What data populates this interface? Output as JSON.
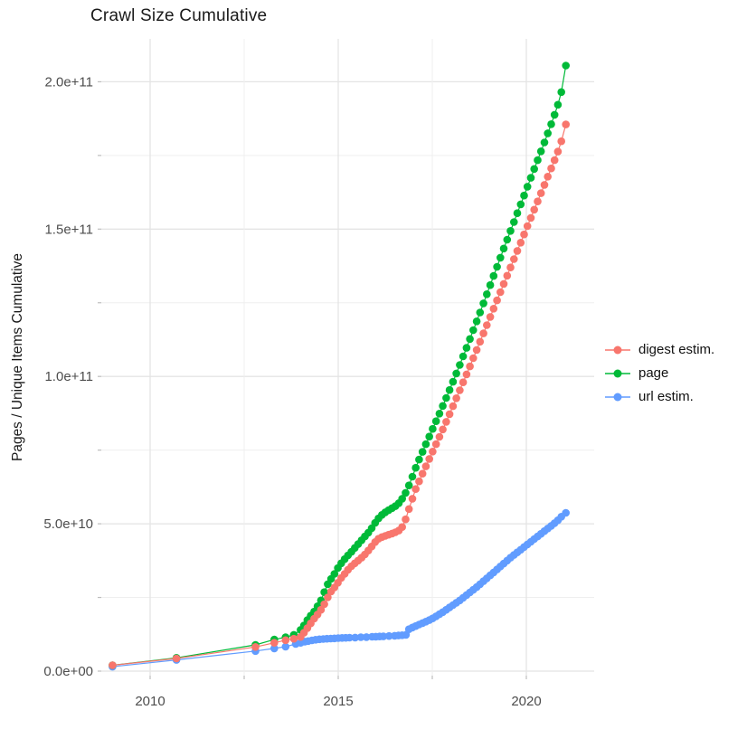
{
  "title": "Crawl Size Cumulative",
  "axes": {
    "y_label": "Pages / Unique Items Cumulative",
    "x_tick_labels": [
      {
        "year": 2010,
        "label": "2010"
      },
      {
        "year": 2015,
        "label": "2015"
      },
      {
        "year": 2020,
        "label": "2020"
      }
    ],
    "x_gridlines_years": [
      2010,
      2012.5,
      2015,
      2017.5,
      2020
    ],
    "y_tick_labels": [
      {
        "value_e9": 0,
        "label": "0.0e+00"
      },
      {
        "value_e9": 50,
        "label": "5.0e+10"
      },
      {
        "value_e9": 100,
        "label": "1.0e+11"
      },
      {
        "value_e9": 150,
        "label": "1.5e+11"
      },
      {
        "value_e9": 200,
        "label": "2.0e+11"
      }
    ],
    "y_gridlines_e9": [
      0,
      25,
      50,
      75,
      100,
      125,
      150,
      175,
      200
    ]
  },
  "legend": [
    {
      "name": "digest estim.",
      "color": "#F8766D"
    },
    {
      "name": "page",
      "color": "#00BA38"
    },
    {
      "name": "url estim.",
      "color": "#619CFF"
    }
  ],
  "colors": {
    "digest": "#F8766D",
    "page": "#00BA38",
    "url": "#619CFF",
    "grid_major": "#e4e4e4",
    "grid_minor": "#efefef",
    "tick": "#bdbdbd",
    "tick_label": "#4d4d4d",
    "title_text": "#1a1a1a"
  },
  "chart_data": {
    "type": "scatter",
    "title": "Crawl Size Cumulative",
    "xlabel": "",
    "ylabel": "Pages / Unique Items Cumulative",
    "x_range_years": [
      2008.7,
      2021.8
    ],
    "y_range": [
      0,
      215000000000.0
    ],
    "value_unit": "pages, values stored in units of 1e9 (billions)",
    "legend_position": "right",
    "grid": true,
    "series": [
      {
        "name": "digest estim.",
        "color": "#F8766D",
        "points": [
          [
            2009.0,
            2
          ],
          [
            2010.7,
            4.3
          ],
          [
            2012.8,
            8.2
          ],
          [
            2013.3,
            9.6
          ],
          [
            2013.6,
            10.5
          ],
          [
            2013.82,
            11.0
          ],
          [
            2014.0,
            11.6
          ],
          [
            2014.09,
            13.0
          ],
          [
            2014.18,
            14.6
          ],
          [
            2014.27,
            16.2
          ],
          [
            2014.36,
            17.8
          ],
          [
            2014.45,
            19.2
          ],
          [
            2014.54,
            20.8
          ],
          [
            2014.63,
            22.7
          ],
          [
            2014.72,
            25.0
          ],
          [
            2014.81,
            27.0
          ],
          [
            2014.9,
            28.4
          ],
          [
            2014.99,
            30.0
          ],
          [
            2015.08,
            31.6
          ],
          [
            2015.17,
            33.0
          ],
          [
            2015.26,
            34.4
          ],
          [
            2015.35,
            35.6
          ],
          [
            2015.44,
            36.6
          ],
          [
            2015.53,
            37.5
          ],
          [
            2015.62,
            38.5
          ],
          [
            2015.71,
            39.6
          ],
          [
            2015.8,
            40.9
          ],
          [
            2015.89,
            42.3
          ],
          [
            2015.98,
            43.8
          ],
          [
            2016.07,
            44.9
          ],
          [
            2016.16,
            45.5
          ],
          [
            2016.25,
            45.9
          ],
          [
            2016.34,
            46.3
          ],
          [
            2016.43,
            46.7
          ],
          [
            2016.52,
            47.1
          ],
          [
            2016.61,
            47.7
          ],
          [
            2016.7,
            48.9
          ],
          [
            2016.79,
            51.5
          ],
          [
            2016.88,
            55.0
          ],
          [
            2016.97,
            58.5
          ],
          [
            2017.06,
            61.8
          ],
          [
            2017.15,
            64.4
          ],
          [
            2017.24,
            67.0
          ],
          [
            2017.33,
            69.5
          ],
          [
            2017.42,
            72.0
          ],
          [
            2017.51,
            74.5
          ],
          [
            2017.6,
            77.0
          ],
          [
            2017.69,
            79.5
          ],
          [
            2017.78,
            82.0
          ],
          [
            2017.87,
            84.6
          ],
          [
            2017.96,
            87.2
          ],
          [
            2018.05,
            89.9
          ],
          [
            2018.14,
            92.6
          ],
          [
            2018.23,
            95.3
          ],
          [
            2018.32,
            98.0
          ],
          [
            2018.41,
            100.7
          ],
          [
            2018.5,
            103.4
          ],
          [
            2018.59,
            106.2
          ],
          [
            2018.68,
            109.0
          ],
          [
            2018.77,
            111.8
          ],
          [
            2018.86,
            114.6
          ],
          [
            2018.95,
            117.4
          ],
          [
            2019.04,
            120.2
          ],
          [
            2019.13,
            123.0
          ],
          [
            2019.22,
            125.8
          ],
          [
            2019.31,
            128.6
          ],
          [
            2019.4,
            131.4
          ],
          [
            2019.49,
            134.2
          ],
          [
            2019.58,
            137.0
          ],
          [
            2019.67,
            139.8
          ],
          [
            2019.76,
            142.6
          ],
          [
            2019.85,
            145.4
          ],
          [
            2019.94,
            148.2
          ],
          [
            2020.03,
            151.0
          ],
          [
            2020.12,
            153.8
          ],
          [
            2020.21,
            156.6
          ],
          [
            2020.3,
            159.4
          ],
          [
            2020.39,
            162.2
          ],
          [
            2020.48,
            165.0
          ],
          [
            2020.57,
            167.8
          ],
          [
            2020.66,
            170.6
          ],
          [
            2020.75,
            173.4
          ],
          [
            2020.84,
            176.3
          ],
          [
            2020.93,
            179.8
          ],
          [
            2021.05,
            185.5
          ]
        ]
      },
      {
        "name": "page",
        "color": "#00BA38",
        "points": [
          [
            2009.0,
            2
          ],
          [
            2010.7,
            4.5
          ],
          [
            2012.8,
            8.9
          ],
          [
            2013.3,
            10.7
          ],
          [
            2013.6,
            11.5
          ],
          [
            2013.82,
            12.3
          ],
          [
            2014.0,
            14
          ],
          [
            2014.09,
            15.5
          ],
          [
            2014.18,
            17.3
          ],
          [
            2014.27,
            18.8
          ],
          [
            2014.36,
            20.2
          ],
          [
            2014.45,
            22.0
          ],
          [
            2014.54,
            24.0
          ],
          [
            2014.63,
            26.8
          ],
          [
            2014.72,
            29.5
          ],
          [
            2014.81,
            31.3
          ],
          [
            2014.9,
            33.0
          ],
          [
            2014.99,
            35.0
          ],
          [
            2015.08,
            36.6
          ],
          [
            2015.17,
            38.0
          ],
          [
            2015.26,
            39.3
          ],
          [
            2015.35,
            40.5
          ],
          [
            2015.44,
            41.8
          ],
          [
            2015.53,
            43.1
          ],
          [
            2015.62,
            44.4
          ],
          [
            2015.71,
            45.7
          ],
          [
            2015.8,
            47.0
          ],
          [
            2015.89,
            48.5
          ],
          [
            2015.98,
            50.3
          ],
          [
            2016.07,
            51.8
          ],
          [
            2016.16,
            53.0
          ],
          [
            2016.25,
            53.9
          ],
          [
            2016.34,
            54.6
          ],
          [
            2016.43,
            55.3
          ],
          [
            2016.52,
            56.0
          ],
          [
            2016.61,
            57.0
          ],
          [
            2016.7,
            58.5
          ],
          [
            2016.79,
            60.5
          ],
          [
            2016.88,
            63.0
          ],
          [
            2016.97,
            66.0
          ],
          [
            2017.06,
            69.0
          ],
          [
            2017.15,
            71.8
          ],
          [
            2017.24,
            74.4
          ],
          [
            2017.33,
            77.0
          ],
          [
            2017.42,
            79.6
          ],
          [
            2017.51,
            82.2
          ],
          [
            2017.6,
            84.8
          ],
          [
            2017.69,
            87.4
          ],
          [
            2017.78,
            90.0
          ],
          [
            2017.87,
            92.7
          ],
          [
            2017.96,
            95.4
          ],
          [
            2018.05,
            98.2
          ],
          [
            2018.14,
            101.0
          ],
          [
            2018.23,
            103.9
          ],
          [
            2018.32,
            106.8
          ],
          [
            2018.41,
            109.7
          ],
          [
            2018.5,
            112.7
          ],
          [
            2018.59,
            115.7
          ],
          [
            2018.68,
            118.7
          ],
          [
            2018.77,
            121.7
          ],
          [
            2018.86,
            124.8
          ],
          [
            2018.95,
            127.9
          ],
          [
            2019.04,
            131.0
          ],
          [
            2019.13,
            134.1
          ],
          [
            2019.22,
            137.2
          ],
          [
            2019.31,
            140.3
          ],
          [
            2019.4,
            143.4
          ],
          [
            2019.49,
            146.4
          ],
          [
            2019.58,
            149.4
          ],
          [
            2019.67,
            152.4
          ],
          [
            2019.76,
            155.4
          ],
          [
            2019.85,
            158.4
          ],
          [
            2019.94,
            161.4
          ],
          [
            2020.03,
            164.4
          ],
          [
            2020.12,
            167.4
          ],
          [
            2020.21,
            170.4
          ],
          [
            2020.3,
            173.4
          ],
          [
            2020.39,
            176.4
          ],
          [
            2020.48,
            179.4
          ],
          [
            2020.57,
            182.5
          ],
          [
            2020.66,
            185.6
          ],
          [
            2020.75,
            188.8
          ],
          [
            2020.84,
            192.2
          ],
          [
            2020.93,
            196.5
          ],
          [
            2021.05,
            205.5
          ]
        ]
      },
      {
        "name": "url estim.",
        "color": "#619CFF",
        "points": [
          [
            2009.0,
            1.5
          ],
          [
            2010.7,
            3.8
          ],
          [
            2012.8,
            6.8
          ],
          [
            2013.3,
            7.7
          ],
          [
            2013.6,
            8.3
          ],
          [
            2013.87,
            9.2
          ],
          [
            2014.0,
            9.6
          ],
          [
            2014.11,
            10.0
          ],
          [
            2014.2,
            10.2
          ],
          [
            2014.3,
            10.45
          ],
          [
            2014.4,
            10.65
          ],
          [
            2014.5,
            10.8
          ],
          [
            2014.6,
            10.9
          ],
          [
            2014.7,
            11.0
          ],
          [
            2014.8,
            11.05
          ],
          [
            2014.9,
            11.1
          ],
          [
            2015.0,
            11.2
          ],
          [
            2015.1,
            11.25
          ],
          [
            2015.2,
            11.3
          ],
          [
            2015.3,
            11.35
          ],
          [
            2015.45,
            11.4
          ],
          [
            2015.6,
            11.5
          ],
          [
            2015.75,
            11.55
          ],
          [
            2015.9,
            11.65
          ],
          [
            2016.0,
            11.7
          ],
          [
            2016.1,
            11.75
          ],
          [
            2016.2,
            11.8
          ],
          [
            2016.35,
            11.9
          ],
          [
            2016.5,
            12.0
          ],
          [
            2016.6,
            12.1
          ],
          [
            2016.7,
            12.2
          ],
          [
            2016.8,
            12.3
          ],
          [
            2016.88,
            14.2
          ],
          [
            2016.97,
            14.8
          ],
          [
            2017.06,
            15.3
          ],
          [
            2017.15,
            15.8
          ],
          [
            2017.24,
            16.3
          ],
          [
            2017.33,
            16.8
          ],
          [
            2017.42,
            17.3
          ],
          [
            2017.51,
            17.9
          ],
          [
            2017.6,
            18.6
          ],
          [
            2017.69,
            19.3
          ],
          [
            2017.78,
            20.0
          ],
          [
            2017.87,
            20.8
          ],
          [
            2017.96,
            21.6
          ],
          [
            2018.05,
            22.4
          ],
          [
            2018.14,
            23.2
          ],
          [
            2018.23,
            24.0
          ],
          [
            2018.32,
            24.9
          ],
          [
            2018.41,
            25.8
          ],
          [
            2018.5,
            26.7
          ],
          [
            2018.59,
            27.6
          ],
          [
            2018.68,
            28.5
          ],
          [
            2018.77,
            29.5
          ],
          [
            2018.86,
            30.5
          ],
          [
            2018.95,
            31.5
          ],
          [
            2019.04,
            32.5
          ],
          [
            2019.13,
            33.5
          ],
          [
            2019.22,
            34.5
          ],
          [
            2019.31,
            35.5
          ],
          [
            2019.4,
            36.5
          ],
          [
            2019.49,
            37.5
          ],
          [
            2019.58,
            38.5
          ],
          [
            2019.67,
            39.4
          ],
          [
            2019.76,
            40.3
          ],
          [
            2019.85,
            41.2
          ],
          [
            2019.94,
            42.1
          ],
          [
            2020.03,
            43.0
          ],
          [
            2020.12,
            43.9
          ],
          [
            2020.21,
            44.8
          ],
          [
            2020.3,
            45.7
          ],
          [
            2020.39,
            46.6
          ],
          [
            2020.48,
            47.5
          ],
          [
            2020.57,
            48.4
          ],
          [
            2020.66,
            49.3
          ],
          [
            2020.75,
            50.2
          ],
          [
            2020.84,
            51.2
          ],
          [
            2020.93,
            52.4
          ],
          [
            2021.05,
            53.7
          ]
        ]
      }
    ]
  }
}
